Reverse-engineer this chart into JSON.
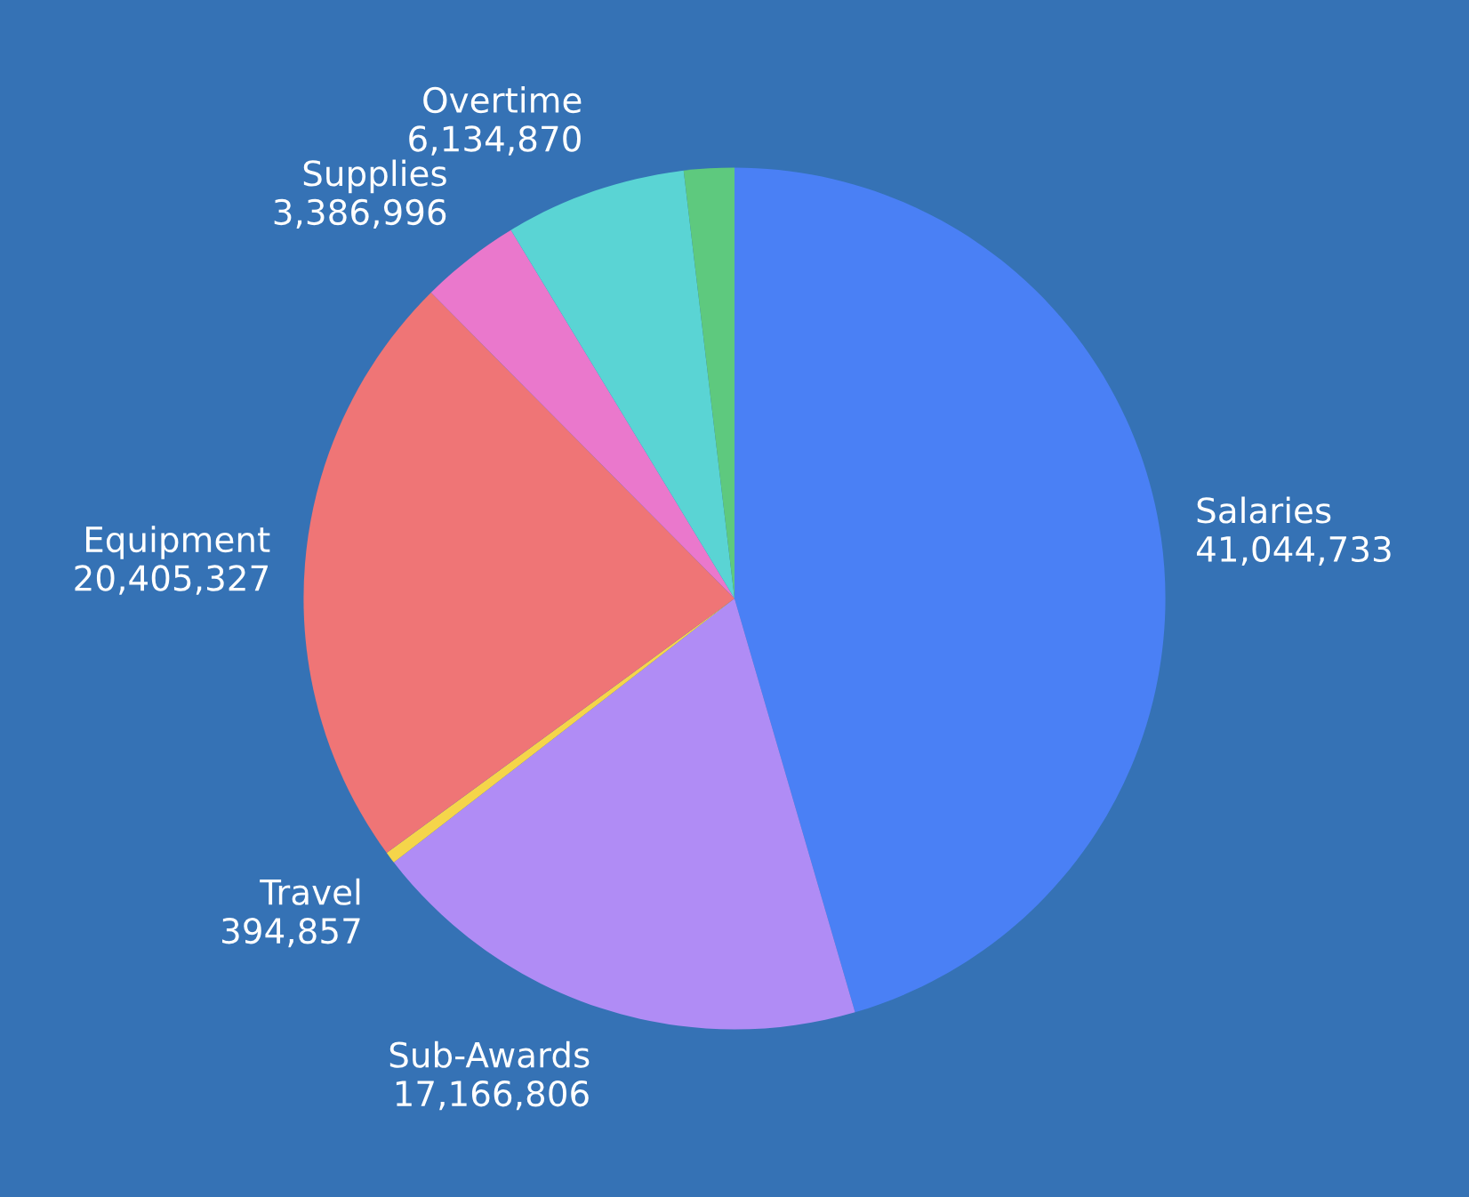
{
  "chart_data": {
    "type": "pie",
    "categories": [
      "Salaries",
      "Sub-Awards",
      "Travel",
      "Equipment",
      "Supplies",
      "Overtime",
      null
    ],
    "values": [
      41044733,
      17166806,
      394857,
      20405327,
      3386996,
      6134870,
      1700000
    ],
    "value_labels": [
      "41,044,733",
      "17,166,806",
      "394,857",
      "20,405,327",
      "3,386,996",
      "6,134,870",
      null
    ],
    "colors": [
      "#4a80f5",
      "#b08cf5",
      "#f5d54a",
      "#ef7576",
      "#ea78cc",
      "#5ad4d4",
      "#5ec97e"
    ],
    "legend": false
  }
}
